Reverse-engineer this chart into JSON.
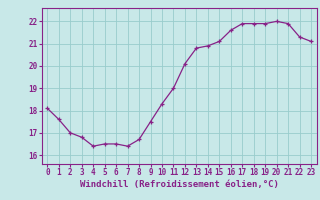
{
  "x": [
    0,
    1,
    2,
    3,
    4,
    5,
    6,
    7,
    8,
    9,
    10,
    11,
    12,
    13,
    14,
    15,
    16,
    17,
    18,
    19,
    20,
    21,
    22,
    23
  ],
  "y": [
    18.1,
    17.6,
    17.0,
    16.8,
    16.4,
    16.5,
    16.5,
    16.4,
    16.7,
    17.5,
    18.3,
    19.0,
    20.1,
    20.8,
    20.9,
    21.1,
    21.6,
    21.9,
    21.9,
    21.9,
    22.0,
    21.9,
    21.3,
    21.1
  ],
  "line_color": "#882288",
  "marker": "+",
  "bg_color": "#c8e8e8",
  "grid_color": "#99cccc",
  "xlabel": "Windchill (Refroidissement éolien,°C)",
  "xlabel_color": "#882288",
  "xtick_labels": [
    "0",
    "1",
    "2",
    "3",
    "4",
    "5",
    "6",
    "7",
    "8",
    "9",
    "10",
    "11",
    "12",
    "13",
    "14",
    "15",
    "16",
    "17",
    "18",
    "19",
    "20",
    "21",
    "22",
    "23"
  ],
  "ytick_labels": [
    "16",
    "17",
    "18",
    "19",
    "20",
    "21",
    "22"
  ],
  "yticks": [
    16,
    17,
    18,
    19,
    20,
    21,
    22
  ],
  "ylim": [
    15.6,
    22.6
  ],
  "xlim": [
    -0.5,
    23.5
  ],
  "tick_color": "#882288",
  "axis_color": "#882288",
  "fontsize_ticks": 5.5,
  "fontsize_xlabel": 6.5,
  "linewidth": 0.9,
  "markersize": 3.5,
  "markeredgewidth": 0.9
}
